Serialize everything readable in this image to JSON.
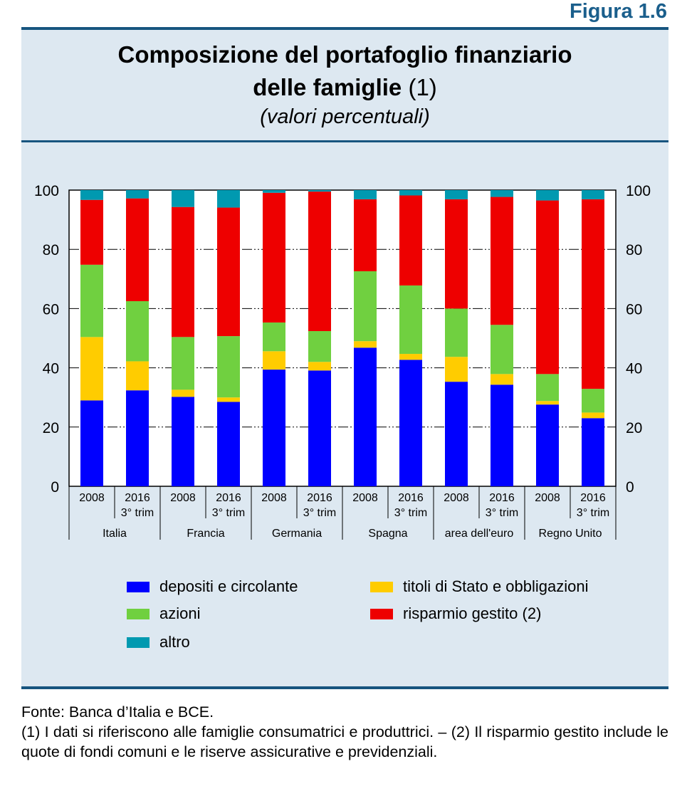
{
  "figure_label": "Figura 1.6",
  "title_line1": "Composizione del portafoglio finanziario",
  "title_line2_bold": "delle famiglie",
  "title_line2_note": " (1)",
  "subtitle": "(valori percentuali)",
  "chart_data": {
    "type": "bar",
    "stacked": true,
    "title": "Composizione del portafoglio finanziario delle famiglie (1)",
    "ylim": [
      0,
      100
    ],
    "yticks": [
      "0",
      "20",
      "40",
      "60",
      "80",
      "100"
    ],
    "grid": true,
    "groups": [
      "Italia",
      "Francia",
      "Germania",
      "Spagna",
      "area dell'euro",
      "Regno Unito"
    ],
    "categories": [
      {
        "year": "2008",
        "sub": ""
      },
      {
        "year": "2016",
        "sub": "3° trim"
      },
      {
        "year": "2008",
        "sub": ""
      },
      {
        "year": "2016",
        "sub": "3° trim"
      },
      {
        "year": "2008",
        "sub": ""
      },
      {
        "year": "2016",
        "sub": "3° trim"
      },
      {
        "year": "2008",
        "sub": ""
      },
      {
        "year": "2016",
        "sub": "3° trim"
      },
      {
        "year": "2008",
        "sub": ""
      },
      {
        "year": "2016",
        "sub": "3° trim"
      },
      {
        "year": "2008",
        "sub": ""
      },
      {
        "year": "2016",
        "sub": "3° trim"
      }
    ],
    "series": [
      {
        "name": "depositi e circolante",
        "color": "#0000ff",
        "values": [
          29.0,
          32.4,
          30.2,
          28.5,
          39.4,
          39.1,
          46.8,
          42.7,
          35.3,
          34.3,
          27.6,
          23.0
        ]
      },
      {
        "name": "titoli di Stato e obbligazioni",
        "color": "#ffcc00",
        "values": [
          21.4,
          9.8,
          2.4,
          1.5,
          6.2,
          2.9,
          2.2,
          2.0,
          8.4,
          3.6,
          1.2,
          1.9
        ]
      },
      {
        "name": "azioni",
        "color": "#70d040",
        "values": [
          24.4,
          20.3,
          17.8,
          20.7,
          9.7,
          10.4,
          23.6,
          23.1,
          16.3,
          16.6,
          9.1,
          8.0
        ]
      },
      {
        "name": "risparmio gestito (2)",
        "color": "#ee0000",
        "values": [
          21.9,
          34.7,
          43.9,
          43.4,
          43.8,
          47.1,
          24.3,
          30.4,
          36.9,
          43.2,
          58.6,
          64.0
        ]
      },
      {
        "name": "altro",
        "color": "#0099b0",
        "values": [
          3.3,
          2.8,
          5.7,
          5.9,
          0.9,
          0.5,
          3.1,
          1.8,
          3.1,
          2.3,
          3.5,
          3.1
        ]
      }
    ],
    "legend_placement": "bottom"
  },
  "legend_order": [
    0,
    1,
    2,
    3,
    4
  ],
  "footer": {
    "source": "Fonte: Banca d’Italia e BCE.",
    "notes": "(1) I dati si riferiscono alle famiglie consumatrici e produttrici. – (2) Il risparmio gestito include le quote di fondi comuni e le riserve assicurative e previdenziali."
  }
}
